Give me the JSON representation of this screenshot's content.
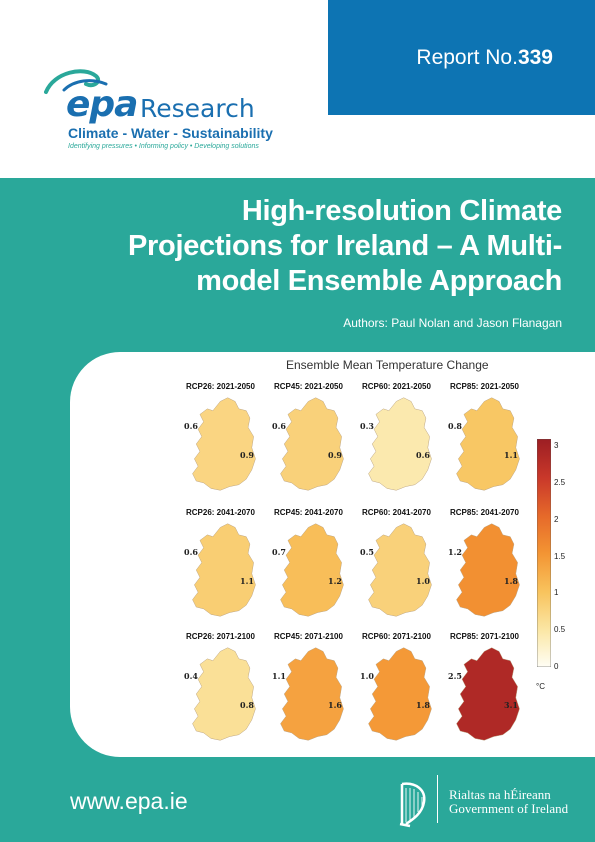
{
  "header": {
    "report_prefix": "Report No.",
    "report_number": "339"
  },
  "logo": {
    "epa": "epa",
    "research": "Research",
    "tagline": "Climate - Water - Sustainability",
    "subtagline": "Identifying pressures • Informing policy • Developing solutions"
  },
  "title": {
    "line1": "High-resolution Climate",
    "line2": "Projections for Ireland – A Multi-",
    "line3": "model Ensemble Approach"
  },
  "authors": "Authors: Paul Nolan and Jason Flanagan",
  "figure": {
    "title": "Ensemble Mean Temperature Change",
    "unit": "°C",
    "scale_ticks": [
      "3",
      "2.5",
      "2",
      "1.5",
      "1",
      "0.5",
      "0"
    ],
    "scale_min": 0,
    "scale_max": 3.1,
    "panels": [
      {
        "label": "RCP26: 2021-2050",
        "min": "0.6",
        "max": "0.9",
        "mean": 0.75
      },
      {
        "label": "RCP45: 2021-2050",
        "min": "0.6",
        "max": "0.9",
        "mean": 0.8
      },
      {
        "label": "RCP60: 2021-2050",
        "min": "0.3",
        "max": "0.6",
        "mean": 0.45
      },
      {
        "label": "RCP85: 2021-2050",
        "min": "0.8",
        "max": "1.1",
        "mean": 0.95
      },
      {
        "label": "RCP26: 2041-2070",
        "min": "0.6",
        "max": "1.1",
        "mean": 0.85
      },
      {
        "label": "RCP45: 2041-2070",
        "min": "0.7",
        "max": "1.2",
        "mean": 1.05
      },
      {
        "label": "RCP60: 2041-2070",
        "min": "0.5",
        "max": "1.0",
        "mean": 0.8
      },
      {
        "label": "RCP85: 2041-2070",
        "min": "1.2",
        "max": "1.8",
        "mean": 1.55
      },
      {
        "label": "RCP26: 2071-2100",
        "min": "0.4",
        "max": "0.8",
        "mean": 0.6
      },
      {
        "label": "RCP45: 2071-2100",
        "min": "1.1",
        "max": "1.6",
        "mean": 1.35
      },
      {
        "label": "RCP60: 2071-2100",
        "min": "1.0",
        "max": "1.8",
        "mean": 1.45
      },
      {
        "label": "RCP85: 2071-2100",
        "min": "2.5",
        "max": "3.1",
        "mean": 2.85
      }
    ]
  },
  "footer": {
    "url": "www.epa.ie",
    "gov_irish": "Rialtas na hÉireann",
    "gov_english": "Government of Ireland"
  }
}
